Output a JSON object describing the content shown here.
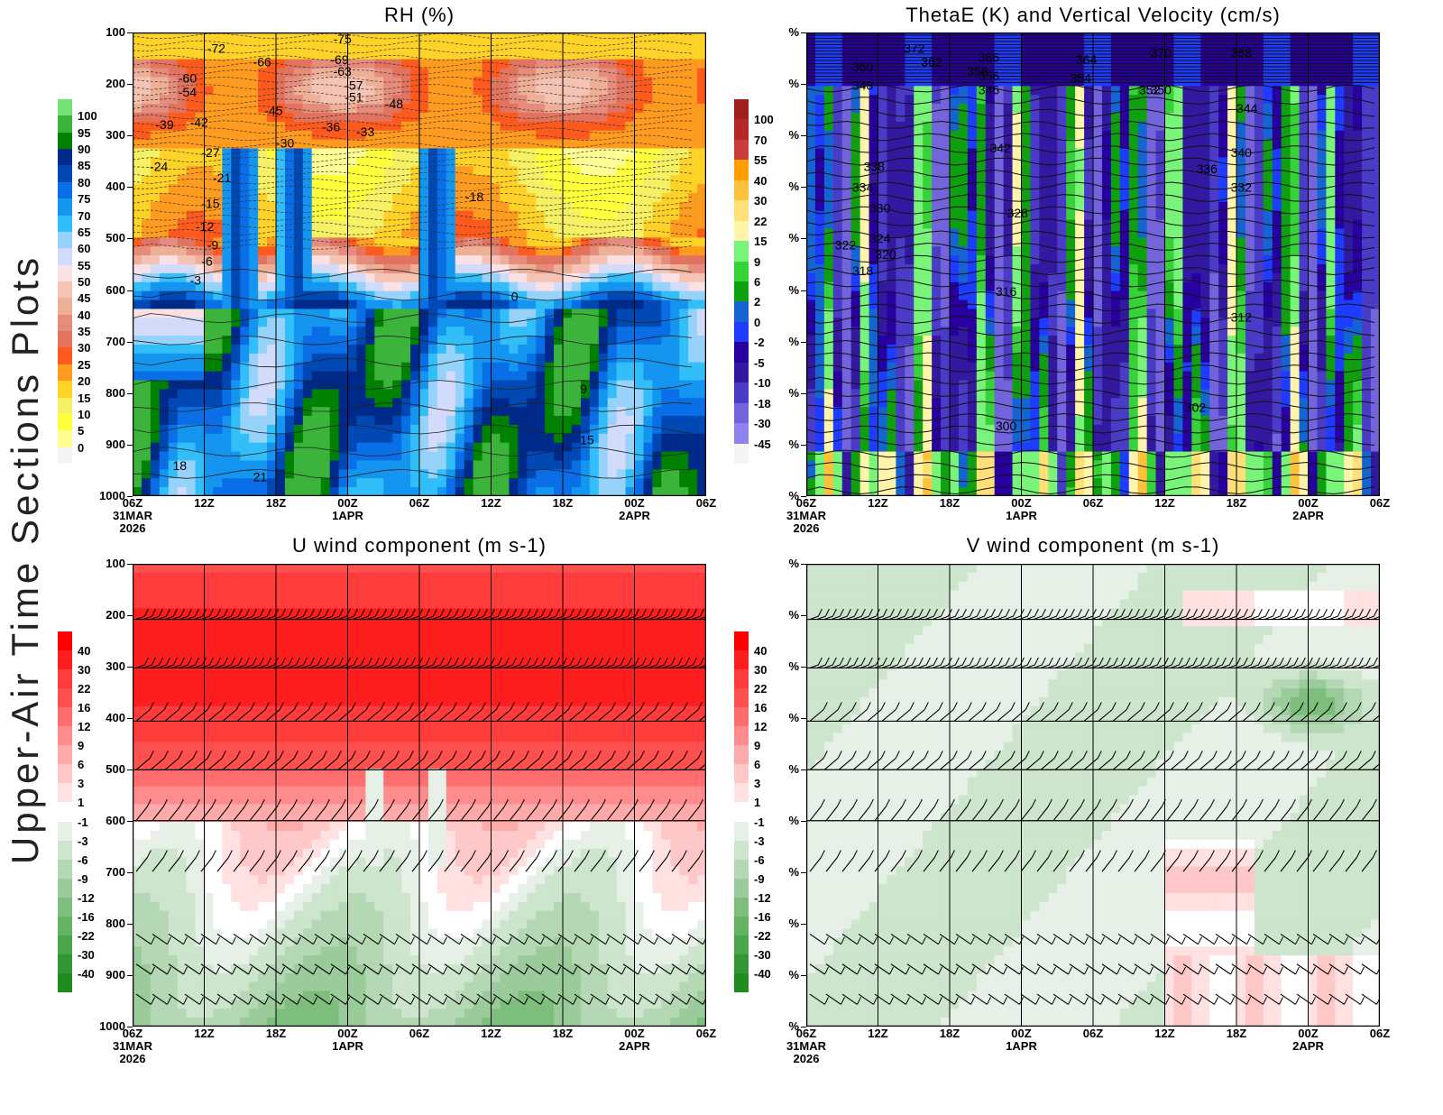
{
  "page_title": "Upper-Air Time Sections Plots",
  "x_axis": {
    "ticks": [
      "06Z",
      "12Z",
      "18Z",
      "00Z",
      "06Z",
      "12Z",
      "18Z",
      "00Z",
      "06Z"
    ],
    "date_labels": [
      {
        "tick_index": 0,
        "lines": [
          "31MAR",
          "2026"
        ]
      },
      {
        "tick_index": 3,
        "lines": [
          "1APR"
        ]
      },
      {
        "tick_index": 7,
        "lines": [
          "2APR"
        ]
      }
    ]
  },
  "chart_data": [
    {
      "id": "rh",
      "type": "heatmap",
      "title": "RH (%)",
      "ylabel_ticks": [
        "100",
        "200",
        "300",
        "400",
        "500",
        "600",
        "700",
        "800",
        "900",
        "1000"
      ],
      "ylim": [
        100,
        1000
      ],
      "colorbar": {
        "labels": [
          "100",
          "95",
          "90",
          "85",
          "80",
          "75",
          "70",
          "65",
          "60",
          "55",
          "50",
          "45",
          "40",
          "35",
          "30",
          "25",
          "20",
          "15",
          "10",
          "5",
          "0"
        ],
        "colors": [
          "#74e274",
          "#3cb43c",
          "#008200",
          "#002a8a",
          "#0048b4",
          "#0a6ee6",
          "#1496f0",
          "#32bef8",
          "#96d2fa",
          "#d2dcfa",
          "#fae1e6",
          "#f5c3b4",
          "#edaf96",
          "#e68c7d",
          "#e1735f",
          "#ff5a1e",
          "#ff9b1e",
          "#ffd228",
          "#f5f064",
          "#ffff3c",
          "#ffff96",
          "#f5f5f5"
        ]
      },
      "contour_labels": [
        "-72",
        "-66",
        "-69",
        "-63",
        "-75",
        "-60",
        "-54",
        "-57",
        "-51",
        "-48",
        "-45",
        "-42",
        "-39",
        "-36",
        "-33",
        "-30",
        "-27",
        "-24",
        "-21",
        "-18",
        "-15",
        "-12",
        "-9",
        "-6",
        "-3",
        "0",
        "9",
        "15",
        "18",
        "21"
      ]
    },
    {
      "id": "thetae",
      "type": "heatmap",
      "title": "ThetaE (K) and Vertical Velocity (cm/s)",
      "ylabel_ticks": [
        "%",
        "%",
        "%",
        "%",
        "%",
        "%",
        "%",
        "%",
        "%",
        "%"
      ],
      "colorbar": {
        "labels": [
          "100",
          "70",
          "55",
          "40",
          "30",
          "22",
          "15",
          "9",
          "6",
          "2",
          "0",
          "-2",
          "-5",
          "-10",
          "-18",
          "-30",
          "-45"
        ],
        "colors": [
          "#a01e1e",
          "#b42828",
          "#c83c3c",
          "#ffa000",
          "#ffc03c",
          "#ffe178",
          "#fff5aa",
          "#78f578",
          "#37d237",
          "#0fa00f",
          "#1464d2",
          "#1e3cff",
          "#2800a0",
          "#3219a0",
          "#4b3cc8",
          "#7364dc",
          "#8c82f0",
          "#f5f5f5"
        ]
      },
      "contour_labels": [
        "372",
        "360",
        "362",
        "358",
        "366",
        "356",
        "348",
        "346",
        "364",
        "354",
        "352",
        "370",
        "350",
        "368",
        "344",
        "342",
        "340",
        "338",
        "336",
        "334",
        "332",
        "330",
        "328",
        "324",
        "322",
        "320",
        "318",
        "316",
        "312",
        "302",
        "300"
      ]
    },
    {
      "id": "uwind",
      "type": "heatmap",
      "title": "U wind component (m s-1)",
      "ylabel_ticks": [
        "100",
        "200",
        "300",
        "400",
        "500",
        "600",
        "700",
        "800",
        "900",
        "1000"
      ],
      "ylim": [
        100,
        1000
      ],
      "colorbar": {
        "labels": [
          "40",
          "30",
          "22",
          "16",
          "12",
          "9",
          "6",
          "3",
          "1",
          "-1",
          "-3",
          "-6",
          "-9",
          "-12",
          "-16",
          "-22",
          "-30",
          "-40"
        ],
        "colors": [
          "#ff0000",
          "#ff1e1e",
          "#ff3c3c",
          "#ff5050",
          "#ff6e6e",
          "#ff8c8c",
          "#ffaaaa",
          "#ffc8c8",
          "#ffe1e1",
          "#ffffff",
          "#e6f0e6",
          "#cde4cd",
          "#b4d7b4",
          "#9bcb9b",
          "#7dbe7d",
          "#64b264",
          "#4ba54b",
          "#329632",
          "#1e8c1e"
        ]
      }
    },
    {
      "id": "vwind",
      "type": "heatmap",
      "title": "V wind component (m s-1)",
      "ylabel_ticks": [
        "%",
        "%",
        "%",
        "%",
        "%",
        "%",
        "%",
        "%",
        "%",
        "%"
      ],
      "colorbar": {
        "labels": [
          "40",
          "30",
          "22",
          "16",
          "12",
          "9",
          "6",
          "3",
          "1",
          "-1",
          "-3",
          "-6",
          "-9",
          "-12",
          "-16",
          "-22",
          "-30",
          "-40"
        ],
        "colors": [
          "#ff0000",
          "#ff1e1e",
          "#ff3c3c",
          "#ff5050",
          "#ff6e6e",
          "#ff8c8c",
          "#ffaaaa",
          "#ffc8c8",
          "#ffe1e1",
          "#ffffff",
          "#e6f0e6",
          "#cde4cd",
          "#b4d7b4",
          "#9bcb9b",
          "#7dbe7d",
          "#64b264",
          "#4ba54b",
          "#329632",
          "#1e8c1e"
        ]
      }
    }
  ]
}
